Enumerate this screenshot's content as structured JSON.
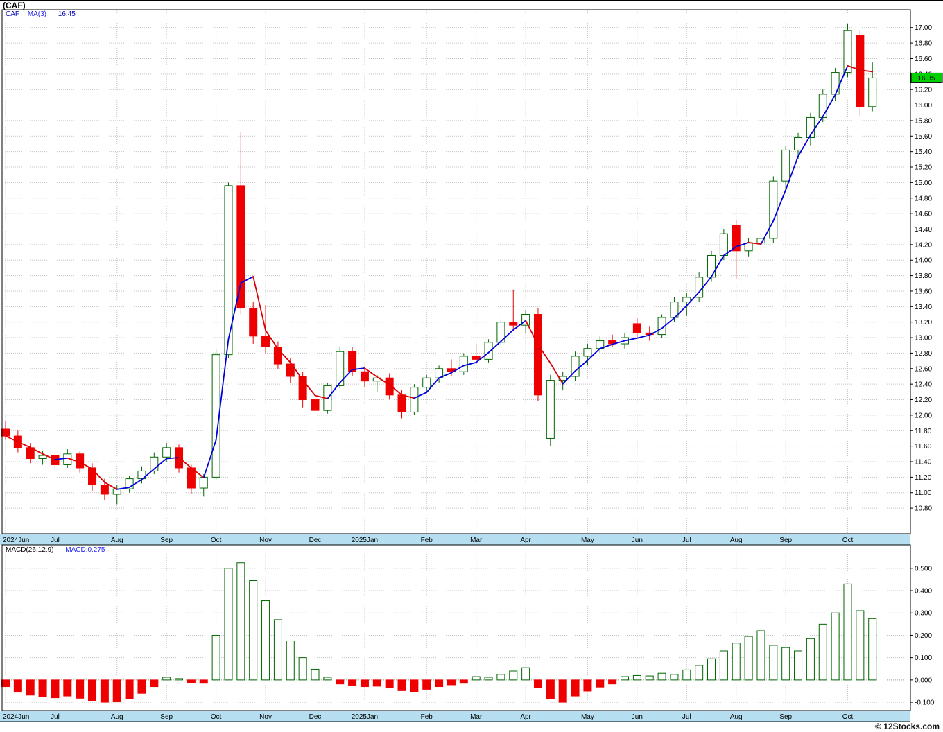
{
  "meta": {
    "title": "(CAF)",
    "watermark": "© 12Stocks.com"
  },
  "price_panel": {
    "legend": {
      "symbol": "CAF",
      "indicator": "MA(3)",
      "value": "16:45"
    },
    "last_price_badge": "16.35",
    "y_ticks": [
      "17.00",
      "16.80",
      "16.60",
      "16.40",
      "16.20",
      "16.00",
      "15.80",
      "15.60",
      "15.40",
      "15.20",
      "15.00",
      "14.80",
      "14.60",
      "14.40",
      "14.20",
      "14.00",
      "13.80",
      "13.60",
      "13.40",
      "13.20",
      "13.00",
      "12.80",
      "12.60",
      "12.40",
      "12.20",
      "12.00",
      "11.80",
      "11.60",
      "11.40",
      "11.20",
      "11.00",
      "10.80"
    ]
  },
  "macd_panel": {
    "legend": {
      "indicator": "MACD(26,12,9)",
      "value": "MACD:0.275"
    },
    "y_ticks": [
      "0.500",
      "0.400",
      "0.300",
      "0.200",
      "0.100",
      "0.000",
      "-0.100"
    ]
  },
  "chart_data": {
    "type": "candlestick",
    "symbol": "CAF",
    "ma_period": 3,
    "macd_params": [
      26,
      12,
      9
    ],
    "last_close": 16.35,
    "macd_last": 0.275,
    "price_ylim": [
      10.8,
      17.0
    ],
    "macd_ylim": [
      -0.1,
      0.5
    ],
    "legend_position": "top-left",
    "grid": true,
    "month_labels": [
      [
        "2024Jun",
        0
      ],
      [
        "Jul",
        4
      ],
      [
        "Aug",
        9
      ],
      [
        "Sep",
        13
      ],
      [
        "Oct",
        17
      ],
      [
        "Nov",
        21
      ],
      [
        "Dec",
        25
      ],
      [
        "2025Jan",
        29
      ],
      [
        "Feb",
        34
      ],
      [
        "Mar",
        38
      ],
      [
        "Apr",
        42
      ],
      [
        "May",
        47
      ],
      [
        "Jun",
        51
      ],
      [
        "Jul",
        55
      ],
      [
        "Aug",
        59
      ],
      [
        "Sep",
        63
      ],
      [
        "Oct",
        68
      ]
    ],
    "candles": [
      [
        11.82,
        11.92,
        11.68,
        11.73
      ],
      [
        11.73,
        11.8,
        11.52,
        11.58
      ],
      [
        11.58,
        11.64,
        11.38,
        11.44
      ],
      [
        11.44,
        11.54,
        11.36,
        11.48
      ],
      [
        11.48,
        11.52,
        11.3,
        11.36
      ],
      [
        11.36,
        11.56,
        11.32,
        11.5
      ],
      [
        11.5,
        11.53,
        11.26,
        11.32
      ],
      [
        11.32,
        11.38,
        11.02,
        11.1
      ],
      [
        11.1,
        11.18,
        10.9,
        10.98
      ],
      [
        10.98,
        11.1,
        10.85,
        11.05
      ],
      [
        11.05,
        11.22,
        11.0,
        11.18
      ],
      [
        11.18,
        11.34,
        11.12,
        11.28
      ],
      [
        11.28,
        11.52,
        11.24,
        11.46
      ],
      [
        11.46,
        11.64,
        11.4,
        11.58
      ],
      [
        11.58,
        11.62,
        11.26,
        11.32
      ],
      [
        11.32,
        11.36,
        10.98,
        11.06
      ],
      [
        11.06,
        11.24,
        10.95,
        11.2
      ],
      [
        11.2,
        12.85,
        11.16,
        12.78
      ],
      [
        12.78,
        15.0,
        12.74,
        14.96
      ],
      [
        14.96,
        15.65,
        13.3,
        13.38
      ],
      [
        13.38,
        13.46,
        12.92,
        13.02
      ],
      [
        13.02,
        13.42,
        12.8,
        12.88
      ],
      [
        12.88,
        12.95,
        12.6,
        12.66
      ],
      [
        12.66,
        12.74,
        12.42,
        12.5
      ],
      [
        12.5,
        12.56,
        12.1,
        12.2
      ],
      [
        12.2,
        12.3,
        11.96,
        12.06
      ],
      [
        12.06,
        12.42,
        12.02,
        12.38
      ],
      [
        12.38,
        12.88,
        12.35,
        12.82
      ],
      [
        12.82,
        12.88,
        12.5,
        12.56
      ],
      [
        12.56,
        12.62,
        12.36,
        12.44
      ],
      [
        12.44,
        12.52,
        12.3,
        12.48
      ],
      [
        12.48,
        12.54,
        12.2,
        12.26
      ],
      [
        12.26,
        12.32,
        11.96,
        12.04
      ],
      [
        12.04,
        12.4,
        12.0,
        12.36
      ],
      [
        12.36,
        12.52,
        12.3,
        12.48
      ],
      [
        12.48,
        12.64,
        12.42,
        12.6
      ],
      [
        12.6,
        12.72,
        12.5,
        12.56
      ],
      [
        12.56,
        12.8,
        12.52,
        12.76
      ],
      [
        12.76,
        12.92,
        12.66,
        12.72
      ],
      [
        12.72,
        12.98,
        12.68,
        12.94
      ],
      [
        12.94,
        13.24,
        12.9,
        13.2
      ],
      [
        13.2,
        13.62,
        13.08,
        13.16
      ],
      [
        13.16,
        13.36,
        13.05,
        13.3
      ],
      [
        13.3,
        13.38,
        12.18,
        12.26
      ],
      [
        11.7,
        12.52,
        11.6,
        12.45
      ],
      [
        12.45,
        12.56,
        12.32,
        12.5
      ],
      [
        12.5,
        12.82,
        12.44,
        12.76
      ],
      [
        12.76,
        12.92,
        12.64,
        12.86
      ],
      [
        12.86,
        13.02,
        12.8,
        12.96
      ],
      [
        12.96,
        13.04,
        12.88,
        12.92
      ],
      [
        12.92,
        13.06,
        12.86,
        13.0
      ],
      [
        13.18,
        13.25,
        13.0,
        13.06
      ],
      [
        13.06,
        13.14,
        12.96,
        13.04
      ],
      [
        13.04,
        13.3,
        13.0,
        13.26
      ],
      [
        13.26,
        13.52,
        13.2,
        13.46
      ],
      [
        13.46,
        13.58,
        13.28,
        13.52
      ],
      [
        13.52,
        13.84,
        13.46,
        13.78
      ],
      [
        13.78,
        14.12,
        13.72,
        14.06
      ],
      [
        14.06,
        14.4,
        14.0,
        14.34
      ],
      [
        14.45,
        14.52,
        13.76,
        14.12
      ],
      [
        14.12,
        14.28,
        14.04,
        14.22
      ],
      [
        14.22,
        14.34,
        14.12,
        14.28
      ],
      [
        14.28,
        15.08,
        14.22,
        15.02
      ],
      [
        15.02,
        15.48,
        14.9,
        15.42
      ],
      [
        15.42,
        15.64,
        15.3,
        15.58
      ],
      [
        15.58,
        15.9,
        15.48,
        15.84
      ],
      [
        15.84,
        16.2,
        15.78,
        16.14
      ],
      [
        16.14,
        16.48,
        16.05,
        16.42
      ],
      [
        16.42,
        17.05,
        16.36,
        16.96
      ],
      [
        16.9,
        16.96,
        15.85,
        15.98
      ],
      [
        15.98,
        16.55,
        15.92,
        16.35
      ]
    ],
    "macd_histogram": [
      -0.03,
      -0.055,
      -0.068,
      -0.075,
      -0.08,
      -0.072,
      -0.082,
      -0.092,
      -0.1,
      -0.095,
      -0.085,
      -0.06,
      -0.03,
      0.012,
      0.006,
      -0.012,
      -0.015,
      0.2,
      0.5,
      0.525,
      0.445,
      0.355,
      0.27,
      0.175,
      0.1,
      0.048,
      0.012,
      -0.018,
      -0.025,
      -0.03,
      -0.028,
      -0.035,
      -0.048,
      -0.052,
      -0.042,
      -0.03,
      -0.022,
      -0.015,
      0.015,
      0.012,
      0.025,
      0.04,
      0.055,
      -0.035,
      -0.085,
      -0.1,
      -0.072,
      -0.05,
      -0.032,
      -0.018,
      0.015,
      0.02,
      0.018,
      0.03,
      0.025,
      0.045,
      0.065,
      0.095,
      0.13,
      0.165,
      0.195,
      0.22,
      0.155,
      0.145,
      0.13,
      0.185,
      0.25,
      0.3,
      0.43,
      0.31,
      0.275
    ],
    "colors": {
      "up": "#006600",
      "down": "#ee0000",
      "ma_up": "#0000dd",
      "ma_down": "#dd0000",
      "band": "#b5dff0",
      "badge": "#00d000",
      "grid": "#c4c4c4"
    }
  }
}
